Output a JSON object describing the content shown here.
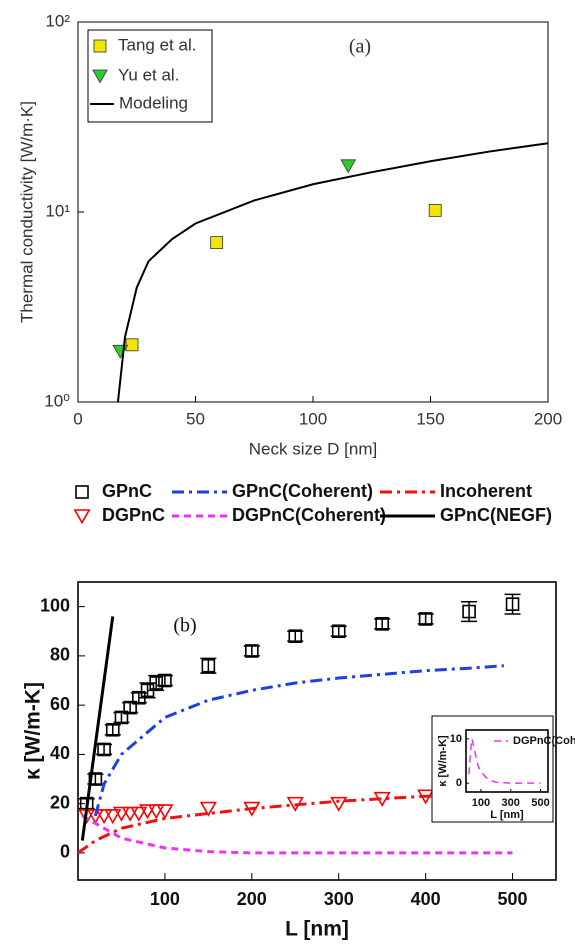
{
  "chart_data": [
    {
      "type": "line",
      "annotation": "(a)",
      "xlabel": "Neck size D  [nm]",
      "ylabel": "Thermal conductivity [W/m·K]",
      "xlim": [
        0,
        200
      ],
      "ylim": [
        1,
        100
      ],
      "log_y": true,
      "xticks": [
        0,
        50,
        100,
        150,
        200
      ],
      "yticks": [
        {
          "value": 1,
          "label": "10⁰"
        },
        {
          "value": 10,
          "label": "10¹"
        },
        {
          "value": 100,
          "label": "10²"
        }
      ],
      "series": [
        {
          "name": "Tang et al.",
          "color": "#f2e600",
          "marker": "square",
          "line": "none",
          "marker_fill": "filled",
          "x": [
            23,
            59,
            152
          ],
          "values": [
            2.0,
            6.9,
            10.2
          ]
        },
        {
          "name": "Yu et al.",
          "color": "#2ecc2e",
          "marker": "triangle-down",
          "line": "none",
          "marker_fill": "filled",
          "x": [
            18,
            115
          ],
          "values": [
            1.85,
            17.5
          ]
        },
        {
          "name": "Modeling",
          "color": "#000000",
          "marker": "none",
          "line": "solid",
          "x": [
            17,
            20,
            25,
            30,
            40,
            50,
            75,
            100,
            125,
            150,
            175,
            200
          ],
          "values": [
            1,
            2.2,
            4.0,
            5.5,
            7.2,
            8.7,
            11.5,
            14,
            16.2,
            18.5,
            20.8,
            23
          ]
        }
      ]
    },
    {
      "type": "line",
      "annotation": "(b)",
      "xlabel": "L [nm]",
      "ylabel": "κ [W/m-K]",
      "xlim": [
        0,
        550
      ],
      "ylim": [
        -11,
        110
      ],
      "xticks": [
        100,
        200,
        300,
        400,
        500
      ],
      "yticks": [
        0,
        20,
        40,
        60,
        80,
        100
      ],
      "series": [
        {
          "name": "GPnC",
          "color": "#000000",
          "marker": "square",
          "line": "none",
          "marker_fill": "hollow",
          "x": [
            10,
            20,
            30,
            40,
            50,
            60,
            70,
            80,
            90,
            100,
            150,
            200,
            250,
            300,
            350,
            400,
            450,
            500
          ],
          "values": [
            20,
            30,
            42,
            50,
            55,
            59,
            63,
            66,
            69,
            70,
            76,
            82,
            88,
            90,
            93,
            95,
            98,
            101
          ],
          "errors": [
            2,
            2,
            2,
            2,
            2,
            2,
            2,
            3,
            3,
            2,
            3,
            2,
            2,
            2,
            2,
            2,
            4,
            4
          ]
        },
        {
          "name": "DGPnC",
          "color": "#ff0000",
          "marker": "triangle-down",
          "line": "none",
          "marker_fill": "hollow",
          "x": [
            10,
            20,
            30,
            40,
            50,
            60,
            70,
            80,
            90,
            100,
            150,
            200,
            250,
            300,
            350,
            400,
            450,
            500
          ],
          "values": [
            15,
            15,
            15,
            15,
            16,
            16,
            16,
            17,
            17,
            17,
            18,
            18,
            20,
            20,
            22,
            23,
            23,
            24
          ]
        },
        {
          "name": "GPnC(Coherent)",
          "color": "#1f3fe0",
          "marker": "none",
          "line": "dashdot",
          "x": [
            20,
            30,
            50,
            100,
            150,
            200,
            250,
            300,
            350,
            400,
            450,
            490
          ],
          "values": [
            15,
            28,
            40,
            55,
            62,
            66,
            69,
            71,
            72.5,
            74,
            75,
            76
          ]
        },
        {
          "name": "DGPnC(Coherent)",
          "color": "#ee33ee",
          "marker": "none",
          "line": "dash",
          "x": [
            5,
            20,
            50,
            100,
            150,
            200,
            300,
            400,
            500
          ],
          "values": [
            15,
            12,
            6,
            2,
            0.5,
            0,
            0,
            0,
            0
          ]
        },
        {
          "name": "Incoherent",
          "color": "#ee1111",
          "marker": "none",
          "line": "dashdot",
          "x": [
            0,
            20,
            50,
            100,
            200,
            300,
            400,
            500
          ],
          "values": [
            0,
            5,
            10,
            14,
            18,
            21,
            23,
            24
          ]
        },
        {
          "name": "GPnC(NEGF)",
          "color": "#000000",
          "marker": "none",
          "line": "solid",
          "x": [
            5,
            40
          ],
          "values": [
            5,
            96
          ]
        }
      ]
    },
    {
      "type": "line",
      "xlabel": "L [nm]",
      "ylabel": "κ [W/m-K]",
      "xlim": [
        0,
        550
      ],
      "ylim": [
        -2,
        12
      ],
      "xticks": [
        100,
        300,
        500
      ],
      "yticks": [
        0,
        10
      ],
      "series": [
        {
          "name": "DGPnC(Coherent)",
          "color": "#ee33ee",
          "marker": "none",
          "line": "dash",
          "x": [
            20,
            30,
            40,
            50,
            60,
            80,
            100,
            150,
            200,
            300,
            400,
            500
          ],
          "values": [
            2,
            7,
            10,
            8.5,
            7,
            4,
            2.5,
            0.8,
            0.2,
            0,
            0,
            0
          ]
        }
      ]
    }
  ]
}
